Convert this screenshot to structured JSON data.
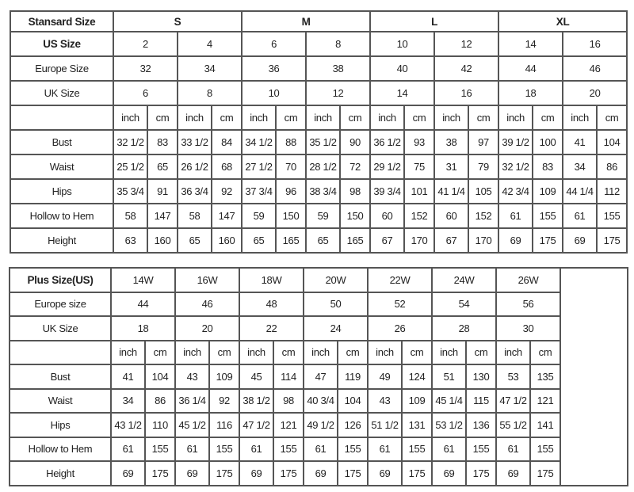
{
  "standard_table": {
    "header_label": "Stansard Size",
    "groups": [
      "S",
      "M",
      "L",
      "XL"
    ],
    "us_label": "US Size",
    "us_sizes": [
      "2",
      "4",
      "6",
      "8",
      "10",
      "12",
      "14",
      "16"
    ],
    "europe_label": "Europe Size",
    "europe_sizes": [
      "32",
      "34",
      "36",
      "38",
      "40",
      "42",
      "44",
      "46"
    ],
    "uk_label": "UK Size",
    "uk_sizes": [
      "6",
      "8",
      "10",
      "12",
      "14",
      "16",
      "18",
      "20"
    ],
    "unit_inch": "inch",
    "unit_cm": "cm",
    "rows": [
      {
        "label": "Bust",
        "values": [
          "32 1/2",
          "83",
          "33 1/2",
          "84",
          "34 1/2",
          "88",
          "35 1/2",
          "90",
          "36 1/2",
          "93",
          "38",
          "97",
          "39 1/2",
          "100",
          "41",
          "104"
        ]
      },
      {
        "label": "Waist",
        "values": [
          "25 1/2",
          "65",
          "26 1/2",
          "68",
          "27 1/2",
          "70",
          "28 1/2",
          "72",
          "29 1/2",
          "75",
          "31",
          "79",
          "32 1/2",
          "83",
          "34",
          "86"
        ]
      },
      {
        "label": "Hips",
        "values": [
          "35 3/4",
          "91",
          "36 3/4",
          "92",
          "37 3/4",
          "96",
          "38 3/4",
          "98",
          "39 3/4",
          "101",
          "41 1/4",
          "105",
          "42 3/4",
          "109",
          "44 1/4",
          "112"
        ]
      },
      {
        "label": "Hollow to Hem",
        "values": [
          "58",
          "147",
          "58",
          "147",
          "59",
          "150",
          "59",
          "150",
          "60",
          "152",
          "60",
          "152",
          "61",
          "155",
          "61",
          "155"
        ]
      },
      {
        "label": "Height",
        "values": [
          "63",
          "160",
          "65",
          "160",
          "65",
          "165",
          "65",
          "165",
          "67",
          "170",
          "67",
          "170",
          "69",
          "175",
          "69",
          "175"
        ]
      }
    ]
  },
  "plus_table": {
    "header_label": "Plus Size(US)",
    "sizes": [
      "14W",
      "16W",
      "18W",
      "20W",
      "22W",
      "24W",
      "26W"
    ],
    "europe_label": "Europe size",
    "europe_sizes": [
      "44",
      "46",
      "48",
      "50",
      "52",
      "54",
      "56"
    ],
    "uk_label": "UK Size",
    "uk_sizes": [
      "18",
      "20",
      "22",
      "24",
      "26",
      "28",
      "30"
    ],
    "unit_inch": "inch",
    "unit_cm": "cm",
    "rows": [
      {
        "label": "Bust",
        "values": [
          "41",
          "104",
          "43",
          "109",
          "45",
          "114",
          "47",
          "119",
          "49",
          "124",
          "51",
          "130",
          "53",
          "135"
        ]
      },
      {
        "label": "Waist",
        "values": [
          "34",
          "86",
          "36 1/4",
          "92",
          "38 1/2",
          "98",
          "40 3/4",
          "104",
          "43",
          "109",
          "45 1/4",
          "115",
          "47 1/2",
          "121"
        ]
      },
      {
        "label": "Hips",
        "values": [
          "43 1/2",
          "110",
          "45 1/2",
          "116",
          "47 1/2",
          "121",
          "49 1/2",
          "126",
          "51 1/2",
          "131",
          "53 1/2",
          "136",
          "55 1/2",
          "141"
        ]
      },
      {
        "label": "Hollow to Hem",
        "values": [
          "61",
          "155",
          "61",
          "155",
          "61",
          "155",
          "61",
          "155",
          "61",
          "155",
          "61",
          "155",
          "61",
          "155"
        ]
      },
      {
        "label": "Height",
        "values": [
          "69",
          "175",
          "69",
          "175",
          "69",
          "175",
          "69",
          "175",
          "69",
          "175",
          "69",
          "175",
          "69",
          "175"
        ]
      }
    ]
  }
}
